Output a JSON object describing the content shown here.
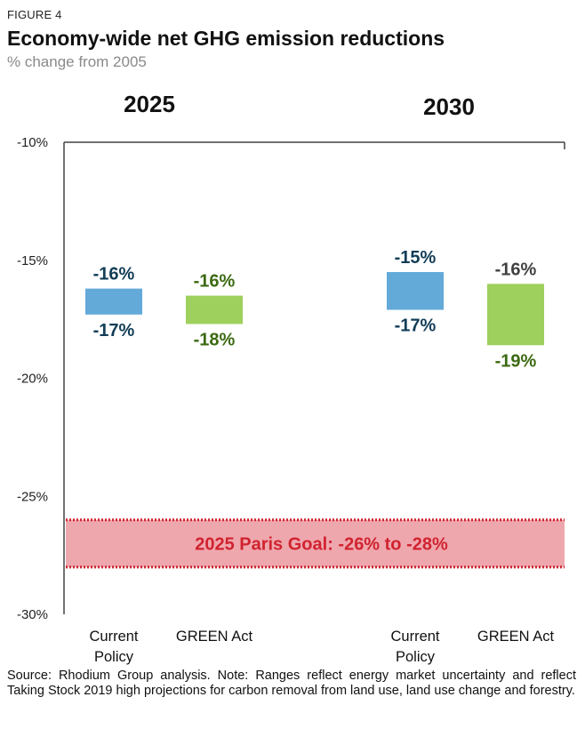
{
  "figure_label": "FIGURE 4",
  "title": "Economy-wide net GHG emission reductions",
  "subtitle": "% change from 2005",
  "note": "Source: Rhodium Group analysis. Note: Ranges reflect energy market uncertainty and reflect Taking Stock 2019 high projections for carbon removal from land use, land use change and forestry.",
  "colors": {
    "current_policy": "#63aad9",
    "green_act": "#9ed05d",
    "goal_fill": "#efa7ae",
    "goal_border": "#d0232f",
    "goal_text": "#d0232f",
    "label_blue": "#123d57",
    "label_green": "#3c6a12",
    "label_gray": "#404040",
    "axis": "#444444"
  },
  "chart_data": {
    "type": "range_bar",
    "ylim": [
      -30,
      -10
    ],
    "yticks": [
      -10,
      -15,
      -20,
      -25,
      -30
    ],
    "ytick_labels": [
      "-10%",
      "-15%",
      "-20%",
      "-25%",
      "-30%"
    ],
    "groups": [
      {
        "year": "2025",
        "bars": [
          {
            "category": "Current Policy",
            "category_lines": [
              "Current",
              "Policy"
            ],
            "series": "current_policy",
            "top": -16.2,
            "bottom": -17.3,
            "top_label": "-16%",
            "bottom_label": "-17%",
            "label_color": "label_blue"
          },
          {
            "category": "GREEN Act",
            "category_lines": [
              "GREEN Act"
            ],
            "series": "green_act",
            "top": -16.5,
            "bottom": -17.7,
            "top_label": "-16%",
            "bottom_label": "-18%",
            "label_color": "label_green"
          }
        ]
      },
      {
        "year": "2030",
        "bars": [
          {
            "category": "Current Policy",
            "category_lines": [
              "Current",
              "Policy"
            ],
            "series": "current_policy",
            "top": -15.5,
            "bottom": -17.1,
            "top_label": "-15%",
            "bottom_label": "-17%",
            "label_color": "label_blue"
          },
          {
            "category": "GREEN Act",
            "category_lines": [
              "GREEN Act"
            ],
            "series": "green_act",
            "top": -16.0,
            "bottom": -18.6,
            "top_label": "-16%",
            "bottom_label": "-19%",
            "label_color": "label_gray",
            "bottom_label_color": "label_green"
          }
        ]
      }
    ],
    "goal_band": {
      "label": "2025 Paris Goal: -26% to -28%",
      "from": -26,
      "to": -28
    }
  }
}
